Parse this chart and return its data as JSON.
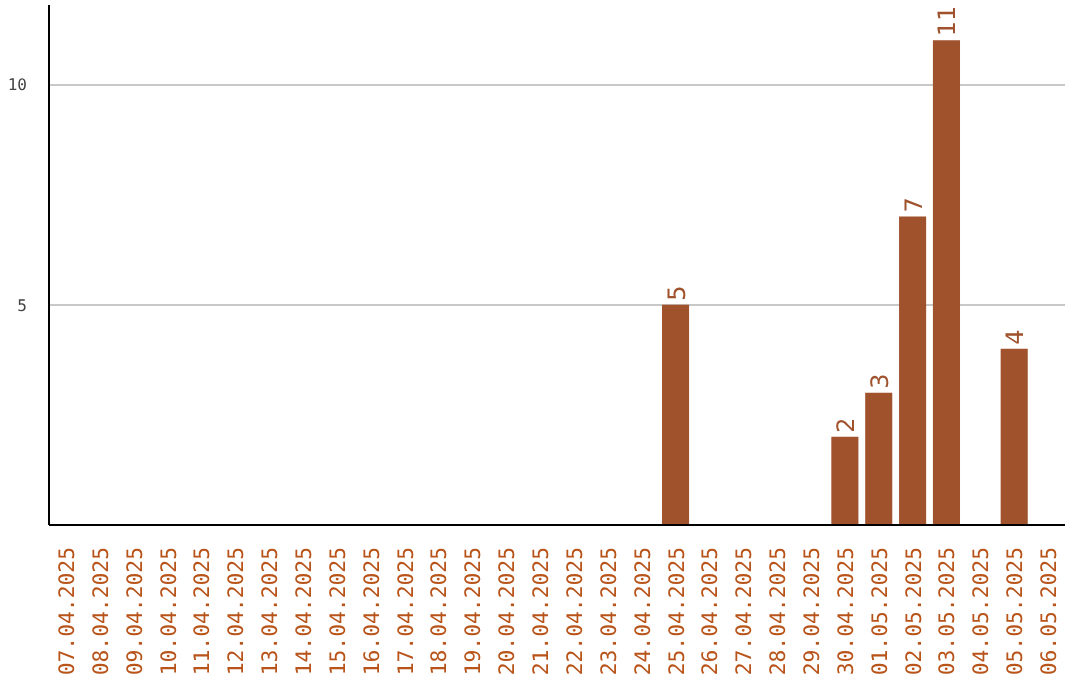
{
  "chart_data": {
    "type": "bar",
    "categories": [
      "07.04.2025",
      "08.04.2025",
      "09.04.2025",
      "10.04.2025",
      "11.04.2025",
      "12.04.2025",
      "13.04.2025",
      "14.04.2025",
      "15.04.2025",
      "16.04.2025",
      "17.04.2025",
      "18.04.2025",
      "19.04.2025",
      "20.04.2025",
      "21.04.2025",
      "22.04.2025",
      "23.04.2025",
      "24.04.2025",
      "25.04.2025",
      "26.04.2025",
      "27.04.2025",
      "28.04.2025",
      "29.04.2025",
      "30.04.2025",
      "01.05.2025",
      "02.05.2025",
      "03.05.2025",
      "04.05.2025",
      "05.05.2025",
      "06.05.2025"
    ],
    "values": [
      0,
      0,
      0,
      0,
      0,
      0,
      0,
      0,
      0,
      0,
      0,
      0,
      0,
      0,
      0,
      0,
      0,
      0,
      5,
      0,
      0,
      0,
      0,
      2,
      3,
      7,
      11,
      0,
      4,
      0
    ],
    "value_labels": [
      null,
      null,
      null,
      null,
      null,
      null,
      null,
      null,
      null,
      null,
      null,
      null,
      null,
      null,
      null,
      null,
      null,
      null,
      "5",
      null,
      null,
      null,
      null,
      "2",
      "3",
      "7",
      "11",
      null,
      "4",
      null
    ],
    "color": "#a0522d",
    "ylim": [
      0,
      11.8
    ],
    "yticks": [
      5,
      10
    ],
    "grid": "y"
  }
}
